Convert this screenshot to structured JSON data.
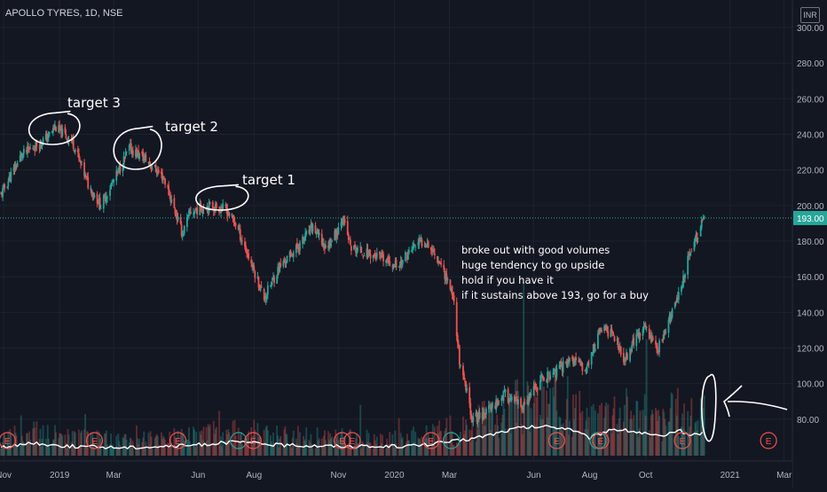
{
  "symbol": "APOLLO TYRES, 1D, NSE",
  "currency": "INR",
  "current_price_label": "193.00",
  "colors": {
    "background": "#131722",
    "up": "#26a69a",
    "down": "#ef5350",
    "grid": "#1e222d",
    "axis_text": "#b2b5be",
    "price_line": "#26a69a",
    "annotation": "#ffffff",
    "earnings": "#ef5350",
    "dividend": "#26a69a"
  },
  "annotations": {
    "target3": "target 3",
    "target2": "target 2",
    "target1": "target 1",
    "note": [
      "broke out with good volumes",
      "huge tendency to go upside",
      "hold if you have it",
      "if it sustains above 193, go for a buy"
    ]
  },
  "event_markers": [
    {
      "date": "2018-11-05",
      "label": "E",
      "kind": "earnings"
    },
    {
      "date": "2019-02-08",
      "label": "E",
      "kind": "earnings"
    },
    {
      "date": "2019-05-10",
      "label": "E",
      "kind": "earnings"
    },
    {
      "date": "2019-07-15",
      "label": "",
      "kind": "dividend"
    },
    {
      "date": "2019-07-31",
      "label": "E",
      "kind": "earnings"
    },
    {
      "date": "2019-11-05",
      "label": "E",
      "kind": "earnings"
    },
    {
      "date": "2019-11-16",
      "label": "E",
      "kind": "earnings"
    },
    {
      "date": "2020-02-10",
      "label": "E",
      "kind": "earnings"
    },
    {
      "date": "2020-03-03",
      "label": "",
      "kind": "dividend"
    },
    {
      "date": "2020-06-26",
      "label": "E",
      "kind": "earnings"
    },
    {
      "date": "2020-08-10",
      "label": "",
      "kind": "dividend"
    },
    {
      "date": "2020-08-13",
      "label": "E",
      "kind": "earnings"
    },
    {
      "date": "2020-11-10",
      "label": "E",
      "kind": "earnings"
    },
    {
      "date": "2021-02-12",
      "label": "E",
      "kind": "earnings"
    }
  ],
  "chart_data": {
    "type": "candlestick",
    "title": "APOLLO TYRES, 1D, NSE",
    "y_unit": "INR",
    "x_range": [
      "2018-10-28",
      "2021-03-10"
    ],
    "ylim": [
      60,
      307
    ],
    "yticks": [
      80,
      100,
      120,
      140,
      160,
      180,
      200,
      220,
      240,
      260,
      280,
      300
    ],
    "ytick_labels": [
      "80.00",
      "100.00",
      "120.00",
      "140.00",
      "160.00",
      "180.00",
      "200.00",
      "220.00",
      "240.00",
      "260.00",
      "280.00",
      "300.00"
    ],
    "xtick_labels": [
      {
        "date": "2018-11-01",
        "label": "Nov"
      },
      {
        "date": "2019-01-01",
        "label": "2019"
      },
      {
        "date": "2019-03-01",
        "label": "Mar"
      },
      {
        "date": "2019-06-01",
        "label": "Jun"
      },
      {
        "date": "2019-08-01",
        "label": "Aug"
      },
      {
        "date": "2019-11-01",
        "label": "Nov"
      },
      {
        "date": "2020-01-01",
        "label": "2020"
      },
      {
        "date": "2020-03-01",
        "label": "Mar"
      },
      {
        "date": "2020-06-01",
        "label": "Jun"
      },
      {
        "date": "2020-08-01",
        "label": "Aug"
      },
      {
        "date": "2020-10-01",
        "label": "Oct"
      },
      {
        "date": "2021-01-01",
        "label": "2021"
      },
      {
        "date": "2021-03-01",
        "label": "Mar"
      }
    ],
    "close_path": [
      {
        "date": "2018-10-29",
        "close": 206
      },
      {
        "date": "2018-11-20",
        "close": 228
      },
      {
        "date": "2018-12-18",
        "close": 238
      },
      {
        "date": "2018-12-27",
        "close": 244
      },
      {
        "date": "2019-01-15",
        "close": 236
      },
      {
        "date": "2019-02-01",
        "close": 212
      },
      {
        "date": "2019-02-15",
        "close": 200
      },
      {
        "date": "2019-03-05",
        "close": 218
      },
      {
        "date": "2019-03-18",
        "close": 232
      },
      {
        "date": "2019-04-05",
        "close": 226
      },
      {
        "date": "2019-04-25",
        "close": 215
      },
      {
        "date": "2019-05-15",
        "close": 184
      },
      {
        "date": "2019-05-23",
        "close": 196
      },
      {
        "date": "2019-06-10",
        "close": 200
      },
      {
        "date": "2019-07-01",
        "close": 198
      },
      {
        "date": "2019-07-12",
        "close": 190
      },
      {
        "date": "2019-08-05",
        "close": 158
      },
      {
        "date": "2019-08-12",
        "close": 148
      },
      {
        "date": "2019-08-28",
        "close": 165
      },
      {
        "date": "2019-09-20",
        "close": 178
      },
      {
        "date": "2019-10-04",
        "close": 188
      },
      {
        "date": "2019-10-18",
        "close": 176
      },
      {
        "date": "2019-10-31",
        "close": 186
      },
      {
        "date": "2019-11-05",
        "close": 194
      },
      {
        "date": "2019-11-15",
        "close": 176
      },
      {
        "date": "2019-12-10",
        "close": 172
      },
      {
        "date": "2020-01-05",
        "close": 166
      },
      {
        "date": "2020-01-24",
        "close": 178
      },
      {
        "date": "2020-02-05",
        "close": 180
      },
      {
        "date": "2020-02-20",
        "close": 168
      },
      {
        "date": "2020-03-05",
        "close": 150
      },
      {
        "date": "2020-03-13",
        "close": 108
      },
      {
        "date": "2020-03-20",
        "close": 95
      },
      {
        "date": "2020-03-26",
        "close": 80
      },
      {
        "date": "2020-04-10",
        "close": 84
      },
      {
        "date": "2020-04-30",
        "close": 94
      },
      {
        "date": "2020-05-20",
        "close": 86
      },
      {
        "date": "2020-06-10",
        "close": 103
      },
      {
        "date": "2020-06-25",
        "close": 106
      },
      {
        "date": "2020-07-10",
        "close": 114
      },
      {
        "date": "2020-07-28",
        "close": 108
      },
      {
        "date": "2020-08-13",
        "close": 131
      },
      {
        "date": "2020-08-27",
        "close": 128
      },
      {
        "date": "2020-09-07",
        "close": 112
      },
      {
        "date": "2020-09-18",
        "close": 124
      },
      {
        "date": "2020-10-01",
        "close": 132
      },
      {
        "date": "2020-10-14",
        "close": 119
      },
      {
        "date": "2020-10-28",
        "close": 137
      },
      {
        "date": "2020-11-05",
        "close": 148
      },
      {
        "date": "2020-11-12",
        "close": 162
      },
      {
        "date": "2020-11-20",
        "close": 176
      },
      {
        "date": "2020-11-30",
        "close": 188
      },
      {
        "date": "2020-12-04",
        "close": 193
      }
    ],
    "volume_ma_path": [
      {
        "date": "2018-10-29",
        "value": 0.3
      },
      {
        "date": "2018-12-01",
        "value": 0.42
      },
      {
        "date": "2019-01-15",
        "value": 0.32
      },
      {
        "date": "2019-03-15",
        "value": 0.28
      },
      {
        "date": "2019-05-15",
        "value": 0.34
      },
      {
        "date": "2019-07-15",
        "value": 0.47
      },
      {
        "date": "2019-09-01",
        "value": 0.36
      },
      {
        "date": "2019-10-15",
        "value": 0.34
      },
      {
        "date": "2019-12-15",
        "value": 0.3
      },
      {
        "date": "2020-02-01",
        "value": 0.36
      },
      {
        "date": "2020-03-20",
        "value": 0.55
      },
      {
        "date": "2020-04-15",
        "value": 0.72
      },
      {
        "date": "2020-05-15",
        "value": 0.95
      },
      {
        "date": "2020-06-15",
        "value": 1.0
      },
      {
        "date": "2020-07-10",
        "value": 0.93
      },
      {
        "date": "2020-08-01",
        "value": 0.6
      },
      {
        "date": "2020-08-25",
        "value": 0.92
      },
      {
        "date": "2020-09-20",
        "value": 0.82
      },
      {
        "date": "2020-10-20",
        "value": 0.62
      },
      {
        "date": "2020-11-05",
        "value": 0.88
      },
      {
        "date": "2020-11-20",
        "value": 0.7
      },
      {
        "date": "2020-12-04",
        "value": 0.8
      }
    ],
    "reference_line": {
      "value": 193,
      "label": "193.00"
    }
  }
}
